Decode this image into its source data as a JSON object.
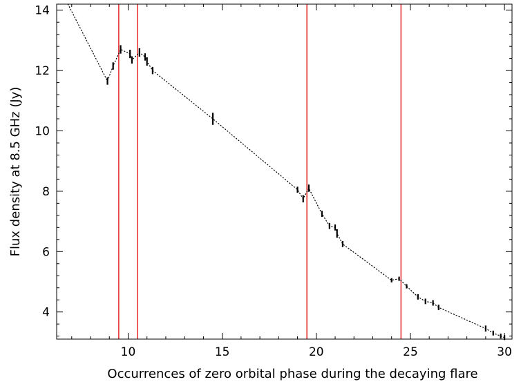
{
  "chart_data": {
    "type": "scatter",
    "xlabel": "Occurrences of zero orbital phase during the decaying flare",
    "ylabel": "Flux density at 8.5 GHz (Jy)",
    "xlim": [
      6.2,
      30.4
    ],
    "ylim": [
      3.1,
      14.2
    ],
    "x_ticks": [
      10,
      15,
      20,
      25,
      30
    ],
    "y_ticks": [
      4,
      6,
      8,
      10,
      12,
      14
    ],
    "x_minor_step": 1,
    "y_minor_step": 0.4,
    "grid": false,
    "vertical_lines": {
      "color": "#e41a1c",
      "x": [
        9.5,
        10.5,
        19.5,
        24.5
      ]
    },
    "series": [
      {
        "marker": "vertical error bar",
        "line": "dotted",
        "color": "#000000",
        "points": [
          {
            "x": 6.8,
            "y": 14.2
          },
          {
            "x": 8.9,
            "y": 11.65
          },
          {
            "x": 9.2,
            "y": 12.15
          },
          {
            "x": 9.6,
            "y": 12.7
          },
          {
            "x": 10.1,
            "y": 12.55
          },
          {
            "x": 10.2,
            "y": 12.35
          },
          {
            "x": 10.6,
            "y": 12.6
          },
          {
            "x": 10.9,
            "y": 12.45
          },
          {
            "x": 11.0,
            "y": 12.3
          },
          {
            "x": 11.3,
            "y": 12.0
          },
          {
            "x": 14.5,
            "y": 10.4
          },
          {
            "x": 19.0,
            "y": 8.05
          },
          {
            "x": 19.3,
            "y": 7.75
          },
          {
            "x": 19.6,
            "y": 8.1
          },
          {
            "x": 20.3,
            "y": 7.25
          },
          {
            "x": 20.7,
            "y": 6.85
          },
          {
            "x": 21.0,
            "y": 6.8
          },
          {
            "x": 21.1,
            "y": 6.6
          },
          {
            "x": 21.4,
            "y": 6.25
          },
          {
            "x": 24.0,
            "y": 5.05
          },
          {
            "x": 24.4,
            "y": 5.1
          },
          {
            "x": 24.8,
            "y": 4.85
          },
          {
            "x": 25.4,
            "y": 4.5
          },
          {
            "x": 25.8,
            "y": 4.35
          },
          {
            "x": 26.2,
            "y": 4.3
          },
          {
            "x": 26.5,
            "y": 4.15
          },
          {
            "x": 29.0,
            "y": 3.45
          },
          {
            "x": 29.4,
            "y": 3.3
          },
          {
            "x": 29.8,
            "y": 3.2
          },
          {
            "x": 30.0,
            "y": 3.15
          }
        ],
        "error": [
          0.12,
          0.12,
          0.12,
          0.14,
          0.14,
          0.12,
          0.14,
          0.12,
          0.14,
          0.12,
          0.2,
          0.1,
          0.12,
          0.12,
          0.1,
          0.1,
          0.1,
          0.14,
          0.1,
          0.07,
          0.07,
          0.07,
          0.09,
          0.09,
          0.09,
          0.09,
          0.1,
          0.08,
          0.08,
          0.08
        ]
      }
    ]
  }
}
